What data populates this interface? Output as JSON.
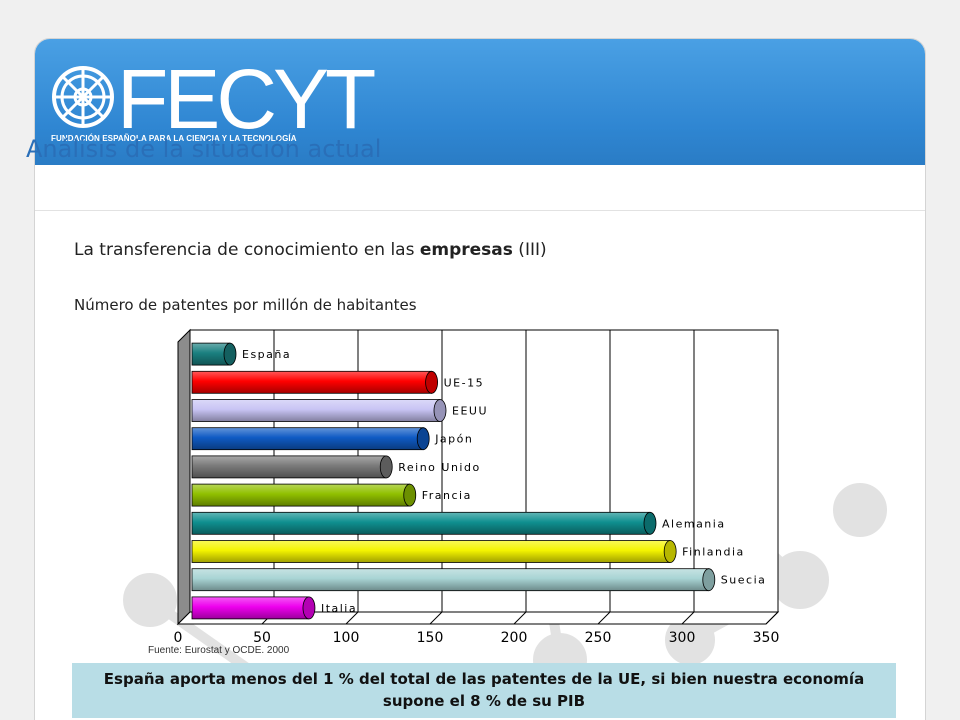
{
  "brand": {
    "logo_text": "FECYT",
    "logo_subtitle": "FUNDACIÓN ESPAÑOLA PARA LA CIENCIA Y LA TECNOLOGÍA"
  },
  "slide": {
    "section_title": "Análisis de la situación actual",
    "subtitle_before": "La transferencia de conocimiento en las ",
    "subtitle_bold": "empresas",
    "subtitle_after": " (III)",
    "chart_caption": "Número de patentes por millón de habitantes",
    "source": "Fuente: Eurostat y OCDE. 2000",
    "conclusion": "España aporta menos del 1 % del total de las patentes de la UE, si bien nuestra economía supone el 8 % de su PIB"
  },
  "chart_data": {
    "type": "bar",
    "orientation": "horizontal",
    "categories": [
      "España",
      "UE-15",
      "EEUU",
      "Japón",
      "Reino Unido",
      "Francia",
      "Alemania",
      "Finlandia",
      "Suecia",
      "Italia"
    ],
    "values": [
      25,
      145,
      150,
      140,
      118,
      132,
      275,
      287,
      310,
      72
    ],
    "colors": [
      "#1a8080",
      "#ff0000",
      "#c8c4f4",
      "#0f5ac4",
      "#7a7a7a",
      "#90c000",
      "#0f8f8f",
      "#f4f400",
      "#a8d4d4",
      "#ee00ee"
    ],
    "xlim": [
      0,
      350
    ],
    "xticks": [
      0,
      50,
      100,
      150,
      200,
      250,
      300,
      350
    ],
    "grid": true,
    "legend": "none"
  }
}
